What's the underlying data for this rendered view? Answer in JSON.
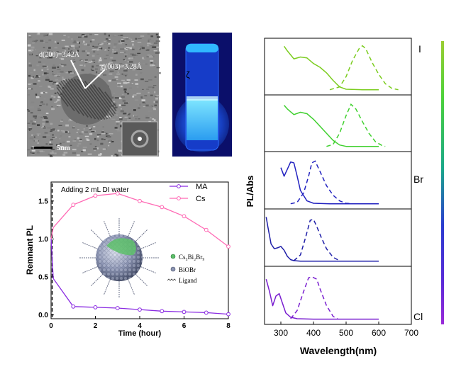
{
  "tem_panel": {
    "d200_label": "d(200)=3.42Å",
    "d003_label": "d(003)=3.28Å",
    "scale_bar_label": "5nm"
  },
  "vial_panel": {
    "vial_mark": "ζ"
  },
  "remnant_pl_chart": {
    "annotation": "Adding 2 mL DI water",
    "inset_legend": [
      "Cs₃Bi₂Br₉",
      "BiOBr",
      "Ligand"
    ],
    "colors": {
      "MA": "#8a2be2",
      "Cs": "#ff69b4"
    }
  },
  "spectra_chart": {
    "colorbar_labels": {
      "top": "I",
      "middle": "Br",
      "bottom": "Cl"
    },
    "colors": [
      "#7ccd20",
      "#3fd02e",
      "#2222c0",
      "#1e1ea8",
      "#7a1fd0"
    ]
  },
  "chart_data": [
    {
      "type": "line",
      "title": "",
      "xlabel": "Time (hour)",
      "ylabel": "Remnant PL",
      "xlim": [
        0,
        8
      ],
      "ylim": [
        -0.05,
        1.75
      ],
      "x_ticks": [
        0,
        2,
        4,
        6,
        8
      ],
      "y_ticks": [
        0.0,
        0.5,
        1.0,
        1.5
      ],
      "x_tick_labels": [
        "0",
        "2",
        "4",
        "6",
        "8"
      ],
      "y_tick_labels": [
        "0.0",
        "0.5",
        "1.0",
        "1.5"
      ],
      "legend_position": "top-right",
      "series": [
        {
          "name": "MA",
          "x": [
            0,
            0.1,
            1,
            2,
            3,
            4,
            5,
            6,
            7,
            8
          ],
          "y": [
            1.0,
            0.48,
            0.11,
            0.1,
            0.09,
            0.07,
            0.05,
            0.04,
            0.03,
            0.01
          ]
        },
        {
          "name": "Cs",
          "x": [
            0,
            0.1,
            1,
            2,
            3,
            4,
            5,
            6,
            7,
            8
          ],
          "y": [
            1.0,
            1.15,
            1.45,
            1.57,
            1.6,
            1.5,
            1.42,
            1.3,
            1.12,
            0.9
          ]
        }
      ]
    },
    {
      "type": "line",
      "title": "",
      "xlabel": "Wavelength(nm)",
      "ylabel": "PL/Abs",
      "xlim": [
        250,
        700
      ],
      "x_ticks": [
        300,
        400,
        500,
        600,
        700
      ],
      "x_tick_labels": [
        "300",
        "400",
        "500",
        "600",
        "700"
      ],
      "panels": [
        {
          "label": "I",
          "absorption": {
            "x": [
              310,
              320,
              340,
              360,
              380,
              400,
              420,
              440,
              460,
              480,
              500,
              550,
              600
            ],
            "y": [
              0.95,
              0.85,
              0.68,
              0.72,
              0.7,
              0.58,
              0.5,
              0.38,
              0.22,
              0.08,
              0.03,
              0.02,
              0.02
            ]
          },
          "pl": {
            "x": [
              450,
              480,
              500,
              520,
              540,
              550,
              560,
              580,
              600,
              620,
              640,
              660
            ],
            "y": [
              0.02,
              0.08,
              0.3,
              0.65,
              0.9,
              0.96,
              0.9,
              0.6,
              0.35,
              0.15,
              0.05,
              0.02
            ]
          }
        },
        {
          "label": "",
          "absorption": {
            "x": [
              310,
              320,
              340,
              360,
              380,
              400,
              420,
              440,
              460,
              480,
              500,
              550,
              600
            ],
            "y": [
              0.9,
              0.82,
              0.7,
              0.75,
              0.72,
              0.6,
              0.45,
              0.3,
              0.15,
              0.05,
              0.02,
              0.02,
              0.02
            ]
          },
          "pl": {
            "x": [
              440,
              460,
              480,
              500,
              515,
              530,
              550,
              570,
              590,
              610,
              620
            ],
            "y": [
              0.02,
              0.06,
              0.3,
              0.68,
              0.92,
              0.82,
              0.55,
              0.3,
              0.12,
              0.04,
              0.02
            ]
          }
        },
        {
          "label": "Br",
          "absorption": {
            "x": [
              300,
              310,
              320,
              330,
              340,
              350,
              360,
              380,
              400,
              450,
              500,
              600
            ],
            "y": [
              0.78,
              0.6,
              0.75,
              0.9,
              0.88,
              0.6,
              0.3,
              0.08,
              0.03,
              0.02,
              0.02,
              0.02
            ]
          },
          "pl": {
            "x": [
              330,
              350,
              370,
              385,
              395,
              405,
              420,
              440,
              460,
              480,
              500,
              520
            ],
            "y": [
              0.02,
              0.05,
              0.25,
              0.6,
              0.88,
              0.92,
              0.7,
              0.4,
              0.2,
              0.08,
              0.03,
              0.02
            ]
          }
        },
        {
          "label": "",
          "absorption": {
            "x": [
              255,
              260,
              270,
              280,
              290,
              300,
              310,
              320,
              330,
              340,
              360,
              400,
              500,
              600
            ],
            "y": [
              0.95,
              0.75,
              0.38,
              0.28,
              0.3,
              0.33,
              0.25,
              0.12,
              0.05,
              0.03,
              0.02,
              0.02,
              0.02,
              0.02
            ]
          },
          "pl": {
            "x": [
              340,
              360,
              375,
              390,
              400,
              410,
              425,
              440,
              460,
              480
            ],
            "y": [
              0.03,
              0.15,
              0.5,
              0.88,
              0.9,
              0.75,
              0.5,
              0.28,
              0.1,
              0.03
            ]
          }
        },
        {
          "label": "Cl",
          "absorption": {
            "x": [
              255,
              265,
              275,
              285,
              295,
              305,
              315,
              330,
              350,
              400,
              500,
              600
            ],
            "y": [
              0.85,
              0.6,
              0.3,
              0.5,
              0.55,
              0.35,
              0.15,
              0.06,
              0.03,
              0.02,
              0.02,
              0.02
            ]
          },
          "pl": {
            "x": [
              330,
              350,
              370,
              385,
              395,
              410,
              420,
              440,
              460,
              475
            ],
            "y": [
              0.03,
              0.2,
              0.6,
              0.88,
              0.9,
              0.85,
              0.65,
              0.3,
              0.08,
              0.02
            ]
          }
        }
      ]
    }
  ]
}
